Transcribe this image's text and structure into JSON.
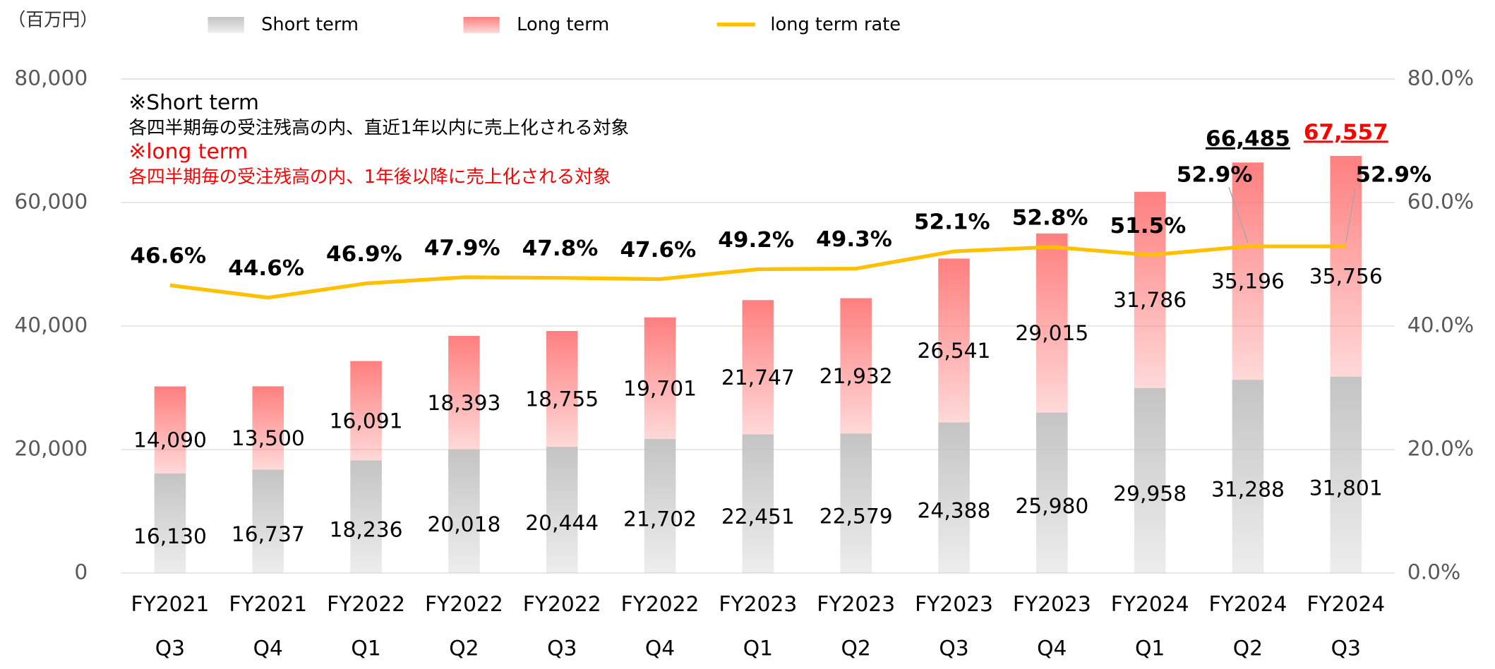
{
  "chart_data": {
    "type": "bar",
    "unit_label": "（百万円）",
    "categories": [
      [
        "FY2021",
        "Q3"
      ],
      [
        "FY2021",
        "Q4"
      ],
      [
        "FY2022",
        "Q1"
      ],
      [
        "FY2022",
        "Q2"
      ],
      [
        "FY2022",
        "Q3"
      ],
      [
        "FY2022",
        "Q4"
      ],
      [
        "FY2023",
        "Q1"
      ],
      [
        "FY2023",
        "Q2"
      ],
      [
        "FY2023",
        "Q3"
      ],
      [
        "FY2023",
        "Q4"
      ],
      [
        "FY2024",
        "Q1"
      ],
      [
        "FY2024",
        "Q2"
      ],
      [
        "FY2024",
        "Q3"
      ]
    ],
    "series": [
      {
        "name": "Short term",
        "color": "#c4c4c4",
        "values": [
          16130,
          16737,
          18236,
          20018,
          20444,
          21702,
          22451,
          22579,
          24388,
          25980,
          29958,
          31288,
          31801
        ],
        "value_labels": [
          "16,130",
          "16,737",
          "18,236",
          "20,018",
          "20,444",
          "21,702",
          "22,451",
          "22,579",
          "24,388",
          "25,980",
          "29,958",
          "31,288",
          "31,801"
        ]
      },
      {
        "name": "Long term",
        "color": "#ff7f7f",
        "values": [
          14090,
          13500,
          16091,
          18393,
          18755,
          19701,
          21747,
          21932,
          26541,
          29015,
          31786,
          35196,
          35756
        ],
        "value_labels": [
          "14,090",
          "13,500",
          "16,091",
          "18,393",
          "18,755",
          "19,701",
          "21,747",
          "21,932",
          "26,541",
          "29,015",
          "31,786",
          "35,196",
          "35,756"
        ]
      },
      {
        "name": "long term rate",
        "color": "#ffc000",
        "type": "line",
        "axis": "y2",
        "values": [
          46.6,
          44.6,
          46.9,
          47.9,
          47.8,
          47.6,
          49.2,
          49.3,
          52.1,
          52.8,
          51.5,
          52.9,
          52.9
        ],
        "value_labels": [
          "46.6%",
          "44.6%",
          "46.9%",
          "47.9%",
          "47.8%",
          "47.6%",
          "49.2%",
          "49.3%",
          "52.1%",
          "52.8%",
          "51.5%",
          "52.9%",
          "52.9%"
        ]
      }
    ],
    "totals": [
      {
        "category_index": 11,
        "label": "66,485",
        "color": "#000000"
      },
      {
        "category_index": 12,
        "label": "67,557",
        "color": "#ff0000"
      }
    ],
    "notes": [
      {
        "text": "※Short term",
        "color": "#000000"
      },
      {
        "text": "各四半期毎の受注残高の内、直近1年以内に売上化される対象",
        "color": "#000000"
      },
      {
        "text": "※long term",
        "color": "#ff0000"
      },
      {
        "text": "各四半期毎の受注残高の内、1年後以降に売上化される対象",
        "color": "#ff0000"
      }
    ],
    "ylim": [
      0,
      80000
    ],
    "yticks": [
      0,
      {
        "value": 20000,
        "label": "20,000"
      },
      {
        "value": 40000,
        "label": "40,000"
      },
      {
        "value": 60000,
        "label": "60,000"
      },
      {
        "value": 80000,
        "label": "80,000"
      }
    ],
    "y2lim": [
      0,
      80
    ],
    "y2ticks": [
      {
        "value": 0,
        "label": "0.0%"
      },
      {
        "value": 20,
        "label": "20.0%"
      },
      {
        "value": 40,
        "label": "40.0%"
      },
      {
        "value": 60,
        "label": "60.0%"
      },
      {
        "value": 80,
        "label": "80.0%"
      }
    ],
    "grid": true
  }
}
